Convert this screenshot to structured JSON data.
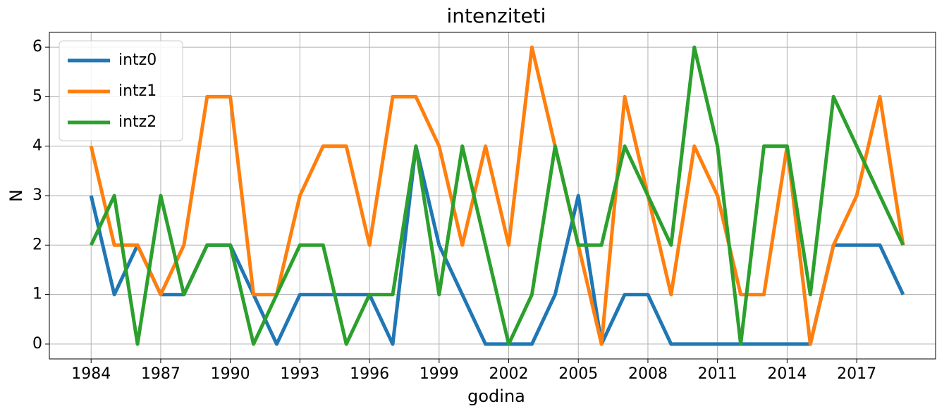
{
  "chart_data": {
    "type": "line",
    "title": "intenziteti",
    "xlabel": "godina",
    "ylabel": "N",
    "x": [
      1984,
      1985,
      1986,
      1987,
      1988,
      1989,
      1990,
      1991,
      1992,
      1993,
      1994,
      1995,
      1996,
      1997,
      1998,
      1999,
      2000,
      2001,
      2002,
      2003,
      2004,
      2005,
      2006,
      2007,
      2008,
      2009,
      2010,
      2011,
      2012,
      2013,
      2014,
      2015,
      2016,
      2017,
      2018,
      2019
    ],
    "series": [
      {
        "name": "intz0",
        "color": "#1f77b4",
        "values": [
          3,
          1,
          2,
          1,
          1,
          2,
          2,
          1,
          0,
          1,
          1,
          1,
          1,
          0,
          4,
          2,
          1,
          0,
          0,
          0,
          1,
          3,
          0,
          1,
          1,
          0,
          0,
          0,
          0,
          0,
          0,
          0,
          2,
          2,
          2,
          1
        ]
      },
      {
        "name": "intz1",
        "color": "#ff7f0e",
        "values": [
          4,
          2,
          2,
          1,
          2,
          5,
          5,
          1,
          1,
          3,
          4,
          4,
          2,
          5,
          5,
          4,
          2,
          4,
          2,
          6,
          4,
          2,
          0,
          5,
          3,
          1,
          4,
          3,
          1,
          1,
          4,
          0,
          2,
          3,
          5,
          2
        ]
      },
      {
        "name": "intz2",
        "color": "#2ca02c",
        "values": [
          2,
          3,
          0,
          3,
          1,
          2,
          2,
          0,
          1,
          2,
          2,
          0,
          1,
          1,
          4,
          1,
          4,
          2,
          0,
          1,
          4,
          2,
          2,
          4,
          3,
          2,
          6,
          4,
          0,
          4,
          4,
          1,
          5,
          4,
          3,
          2
        ]
      }
    ],
    "xlim": [
      1982.2,
      2020.4
    ],
    "ylim": [
      -0.3,
      6.3
    ],
    "xticks": [
      1984,
      1987,
      1990,
      1993,
      1996,
      1999,
      2002,
      2005,
      2008,
      2011,
      2014,
      2017
    ],
    "yticks": [
      0,
      1,
      2,
      3,
      4,
      5,
      6
    ],
    "grid": true,
    "legend": "upper left"
  }
}
